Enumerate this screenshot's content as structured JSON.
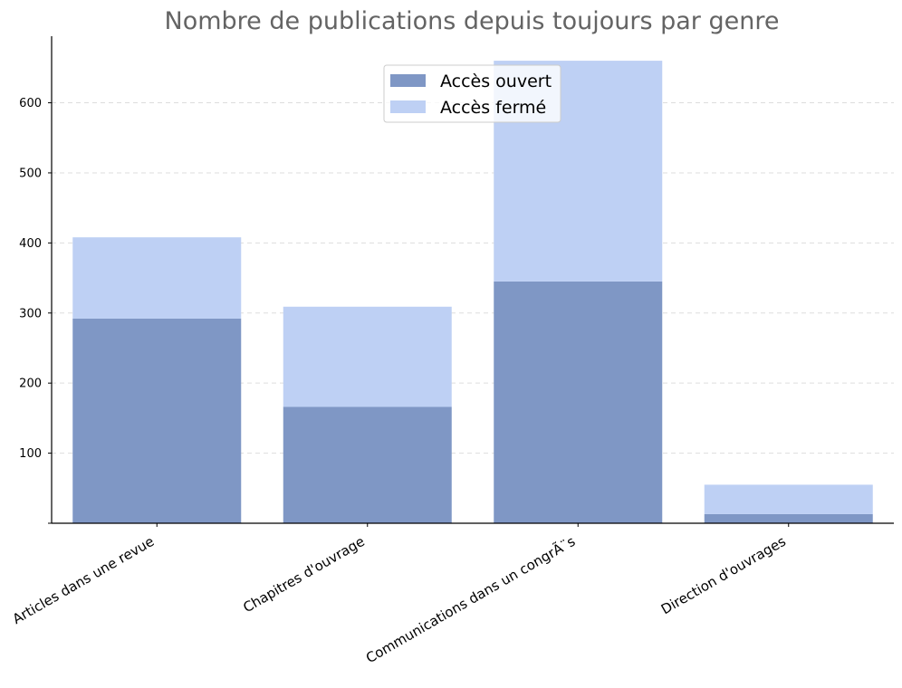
{
  "chart_data": {
    "type": "bar",
    "stacked": true,
    "title": "Nombre de publications depuis toujours par genre",
    "xlabel": "",
    "ylabel": "",
    "categories": [
      "Articles dans une revue",
      "Chapitres d'ouvrage",
      "Communications dans un congrÃ¨s",
      "Direction d'ouvrages"
    ],
    "series": [
      {
        "name": "Accès ouvert",
        "color": "#7f97c5",
        "values": [
          292,
          166,
          345,
          13
        ]
      },
      {
        "name": "Accès fermé",
        "color": "#bed0f4",
        "values": [
          116,
          143,
          315,
          42
        ]
      }
    ],
    "ylim": [
      0,
      695
    ],
    "yticks": [
      100,
      200,
      300,
      400,
      500,
      600
    ],
    "grid": true,
    "legend_position": "top-center"
  }
}
